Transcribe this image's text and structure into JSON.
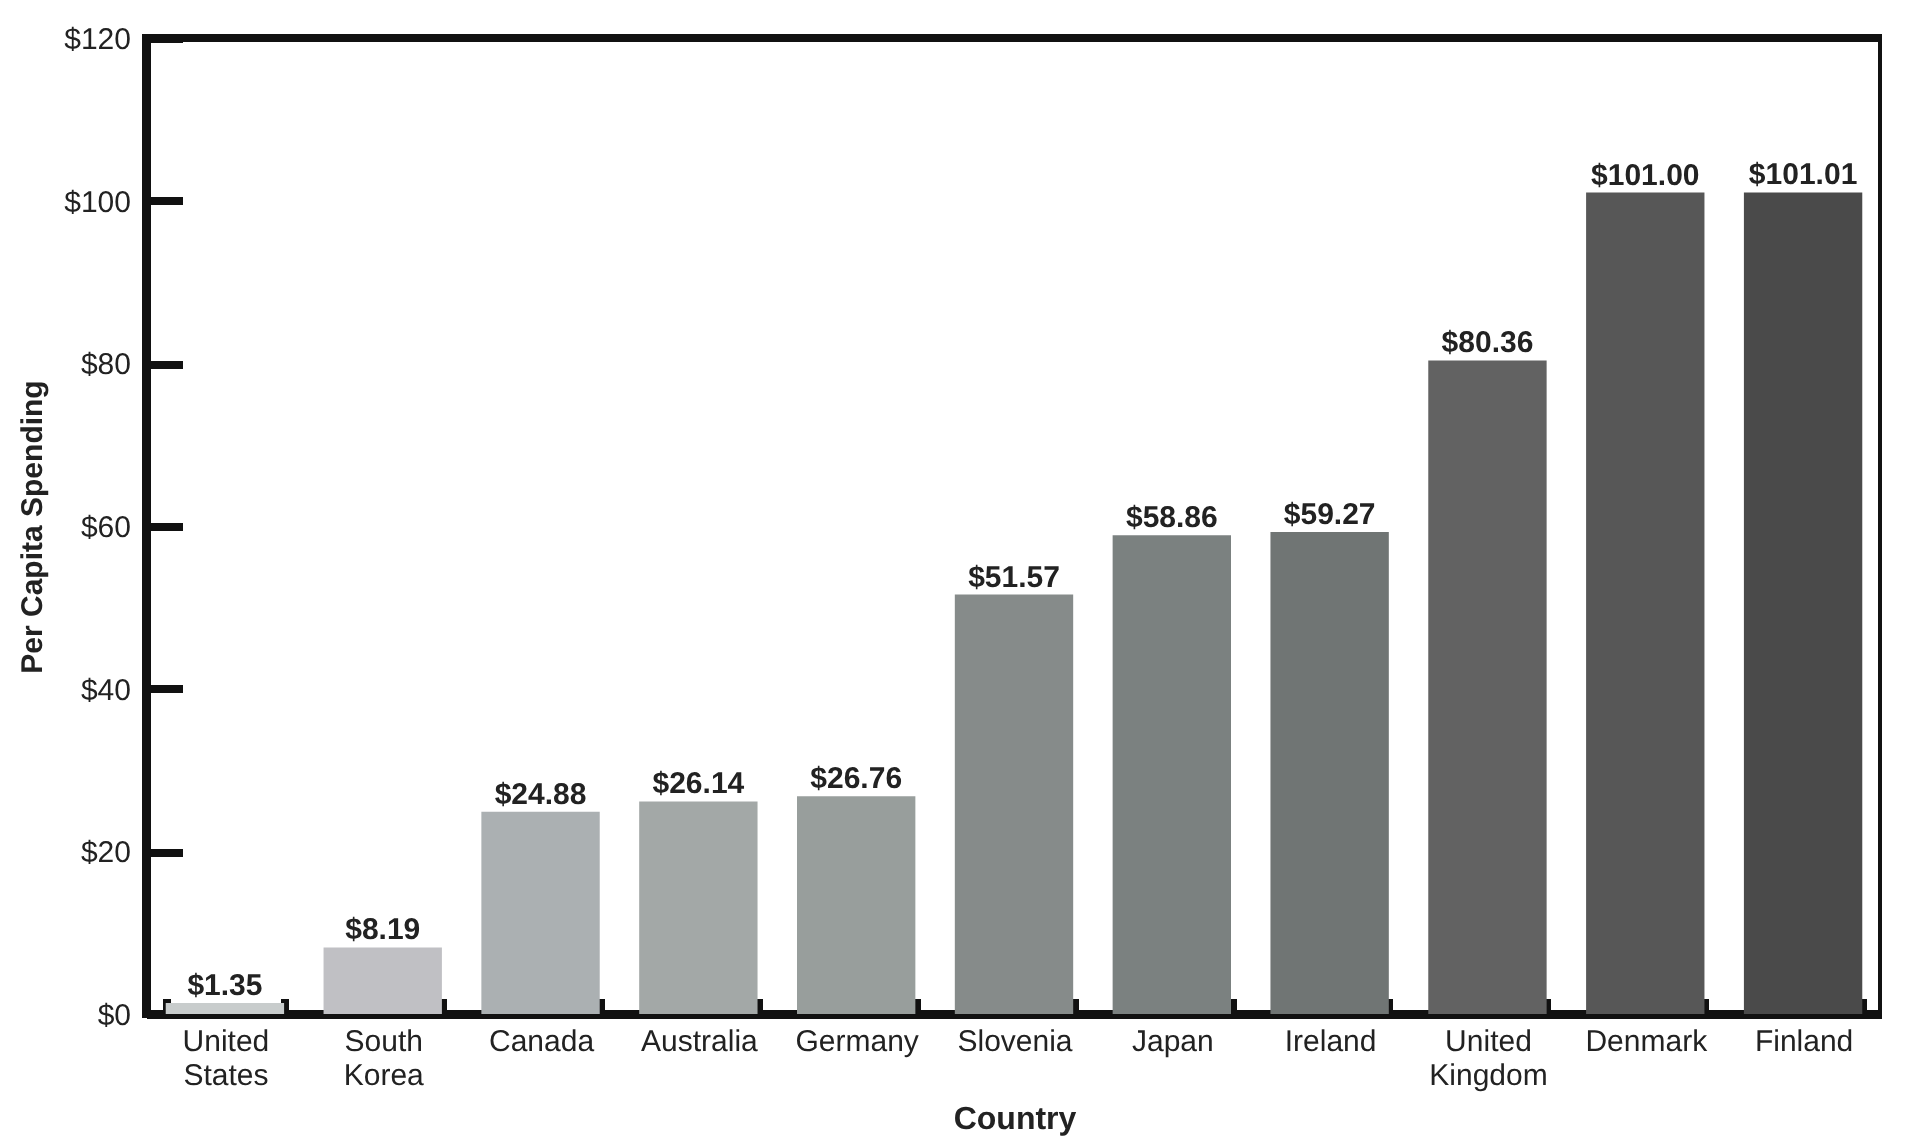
{
  "chart_data": {
    "type": "bar",
    "xlabel": "Country",
    "ylabel": "Per Capita Spending",
    "categories": [
      "United States",
      "South Korea",
      "Canada",
      "Australia",
      "Germany",
      "Slovenia",
      "Japan",
      "Ireland",
      "United Kingdom",
      "Denmark",
      "Finland"
    ],
    "values": [
      1.35,
      8.19,
      24.88,
      26.14,
      26.76,
      51.57,
      58.86,
      59.27,
      80.36,
      101.0,
      101.01
    ],
    "value_labels": [
      "$1.35",
      "$8.19",
      "$24.88",
      "$26.14",
      "$26.76",
      "$51.57",
      "$58.86",
      "$59.27",
      "$80.36",
      "$101.00",
      "$101.01"
    ],
    "colors": [
      "#c8cccc",
      "#c0c0c4",
      "#abb0b2",
      "#a3a8a7",
      "#989e9c",
      "#868b8a",
      "#7b8180",
      "#707574",
      "#626262",
      "#575757",
      "#4a4a4a"
    ],
    "ylim": [
      0,
      120
    ],
    "yticks": [
      {
        "value": 0,
        "label": "$0"
      },
      {
        "value": 20,
        "label": "$20"
      },
      {
        "value": 40,
        "label": "$40"
      },
      {
        "value": 60,
        "label": "$60"
      },
      {
        "value": 80,
        "label": "$80"
      },
      {
        "value": 100,
        "label": "$100"
      },
      {
        "value": 120,
        "label": "$120"
      }
    ],
    "grid": false
  }
}
